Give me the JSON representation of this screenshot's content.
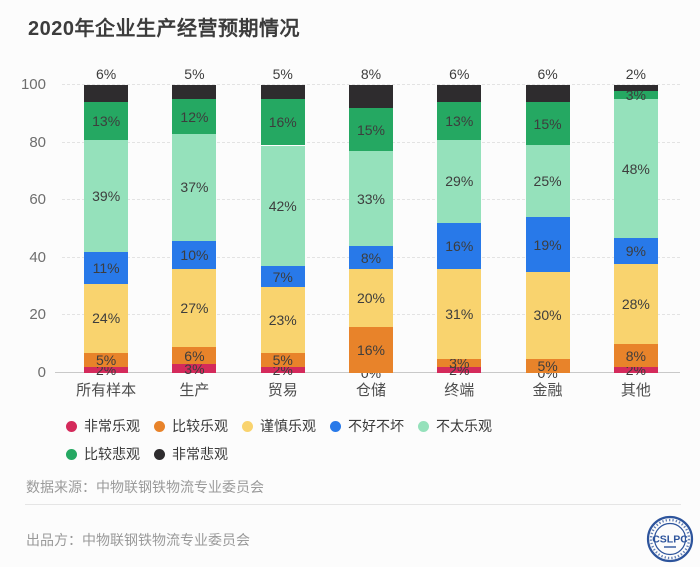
{
  "title": "2020年企业生产经营预期情况",
  "chart_data": {
    "type": "bar",
    "stacked": true,
    "title": "2020年企业生产经营预期情况",
    "categories": [
      "所有样本",
      "生产",
      "贸易",
      "仓储",
      "终端",
      "金融",
      "其他"
    ],
    "series": [
      {
        "name": "非常乐观",
        "color": "#d42a5b",
        "values": [
          2,
          3,
          2,
          0,
          2,
          0,
          2
        ]
      },
      {
        "name": "比较乐观",
        "color": "#e8832a",
        "values": [
          5,
          6,
          5,
          16,
          3,
          5,
          8
        ]
      },
      {
        "name": "谨慎乐观",
        "color": "#f9d36e",
        "values": [
          24,
          27,
          23,
          20,
          31,
          30,
          28
        ]
      },
      {
        "name": "不好不坏",
        "color": "#2879e9",
        "values": [
          11,
          10,
          7,
          8,
          16,
          19,
          9
        ]
      },
      {
        "name": "不太乐观",
        "color": "#95e1bb",
        "values": [
          39,
          37,
          42,
          33,
          29,
          25,
          48
        ]
      },
      {
        "name": "比较悲观",
        "color": "#25a862",
        "values": [
          13,
          12,
          16,
          15,
          13,
          15,
          3
        ]
      },
      {
        "name": "非常悲观",
        "color": "#2e2c2e",
        "values": [
          6,
          5,
          5,
          8,
          6,
          6,
          2
        ]
      }
    ],
    "y_ticks": [
      0,
      20,
      40,
      60,
      80,
      100
    ],
    "ylim": [
      0,
      100
    ],
    "value_suffix": "%",
    "grid": "horizontal-dashed",
    "legend_position": "bottom",
    "legend_rows": [
      5,
      2
    ]
  },
  "footer": {
    "source_label": "数据来源：中物联钢铁物流专业委员会",
    "producer_label": "出品方：中物联钢铁物流专业委员会",
    "logo_text": "CSLPC",
    "logo_color": "#2d549c"
  },
  "colors": {
    "background": "#fcfcfc",
    "title_text": "#3c3c3c",
    "axis_text": "#6e6e6e",
    "value_label_text": "#3d3d3d",
    "footer_text": "#9a9a9a"
  }
}
